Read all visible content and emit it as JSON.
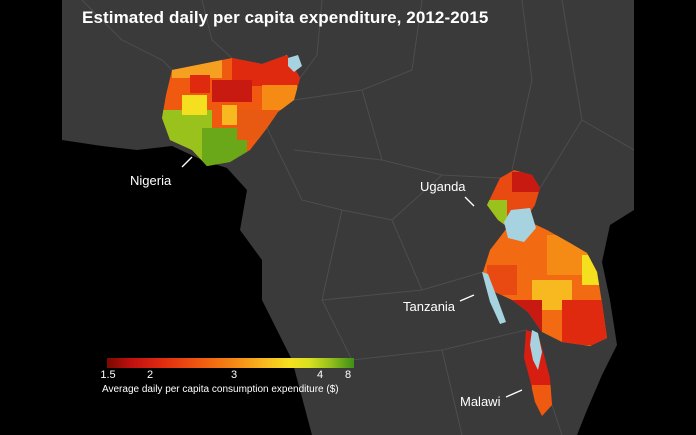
{
  "title": "Estimated daily per capita expenditure, 2012-2015",
  "labels": {
    "nigeria": "Nigeria",
    "uganda": "Uganda",
    "tanzania": "Tanzania",
    "malawi": "Malawi"
  },
  "legend": {
    "ticks": [
      "1.5",
      "2",
      "3",
      "4",
      "8"
    ],
    "caption": "Average daily per capita consumption expenditure ($)"
  },
  "colors": {
    "ocean": "#000000",
    "land": "#3a3a3a",
    "border": "#555555",
    "water": "#a7d3e0",
    "scale": [
      "#7a0a00",
      "#c01010",
      "#e02a10",
      "#f05a10",
      "#f58a15",
      "#f8b820",
      "#f5e020",
      "#9ac21c",
      "#3f8f17"
    ]
  }
}
